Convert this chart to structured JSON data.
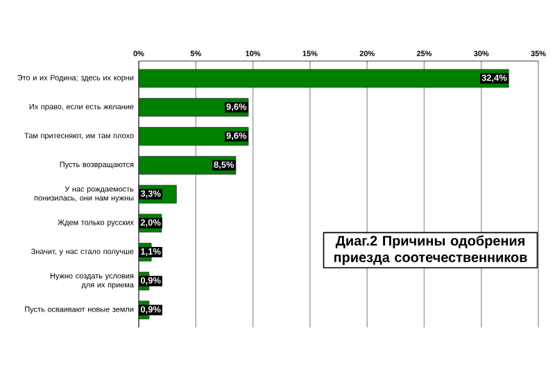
{
  "chart_data": {
    "type": "bar",
    "orientation": "horizontal",
    "title": "Диаг.2 Причины одобрения приезда соотечественников",
    "categories": [
      "Это и их Родина; здесь их корни",
      "Их право, если есть желание",
      "Там притесняют, им там плохо",
      "Пусть возвращаются",
      "У нас рождаемость понизилась, они нам нужны",
      "Ждем только русских",
      "Значит, у нас стало получше",
      "Нужно создать условия для их приема",
      "Пусть осваивают новые земли"
    ],
    "values": [
      32.4,
      9.6,
      9.6,
      8.5,
      3.3,
      2.0,
      1.1,
      0.9,
      0.9
    ],
    "value_labels": [
      "32,4%",
      "9,6%",
      "9,6%",
      "8,5%",
      "3,3%",
      "2,0%",
      "1,1%",
      "0,9%",
      "0,9%"
    ],
    "color": "#008000",
    "xlim": [
      0,
      35
    ],
    "xticks": [
      {
        "value": 0,
        "label": "0%"
      },
      {
        "value": 5,
        "label": "5%"
      },
      {
        "value": 10,
        "label": "10%"
      },
      {
        "value": 15,
        "label": "15%"
      },
      {
        "value": 20,
        "label": "20%"
      },
      {
        "value": 25,
        "label": "25%"
      },
      {
        "value": 30,
        "label": "30%"
      },
      {
        "value": 35,
        "label": "35%"
      }
    ],
    "grid": "x"
  }
}
